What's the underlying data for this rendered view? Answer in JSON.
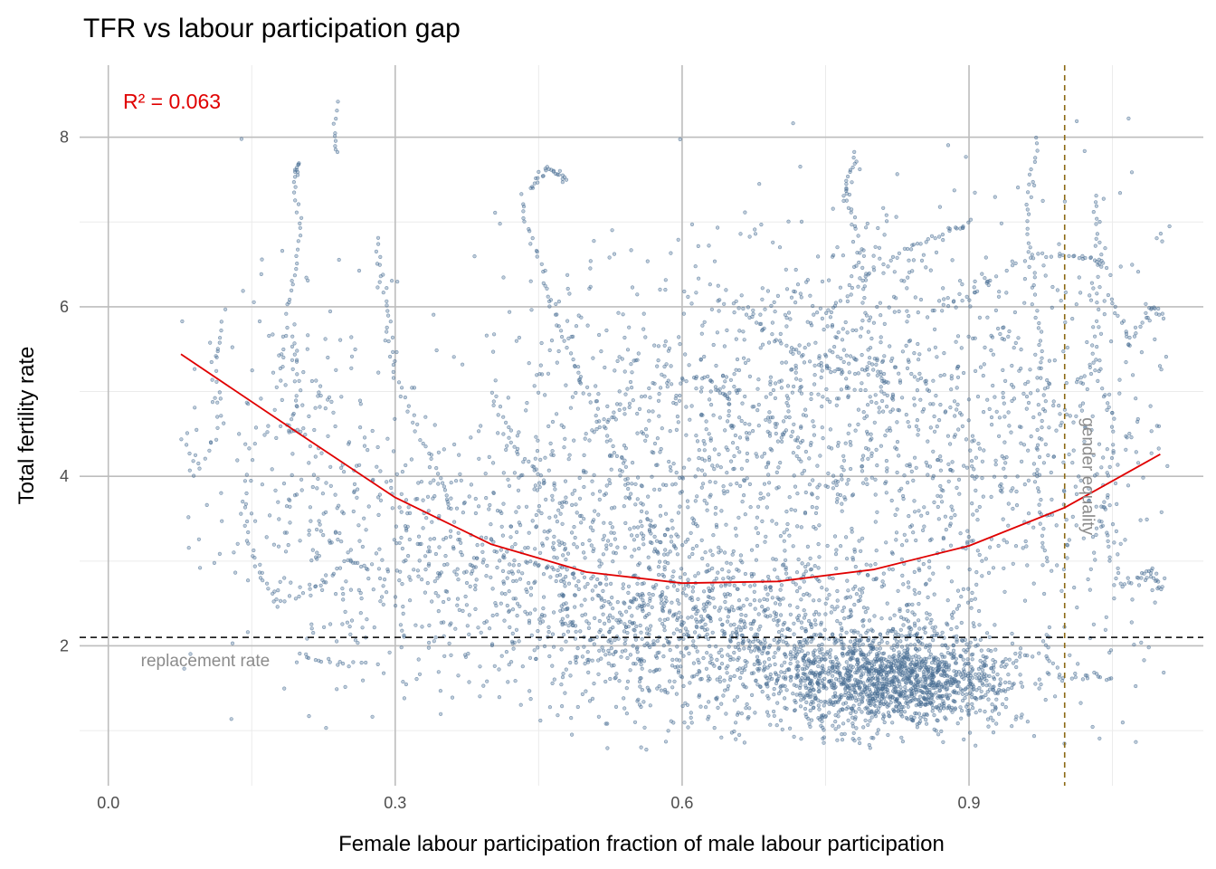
{
  "chart_data": {
    "type": "scatter",
    "title": "TFR vs labour participation gap",
    "xlabel": "Female labour participation fraction of male labour participation",
    "ylabel": "Total fertility rate",
    "xlim": [
      -0.03,
      1.145
    ],
    "ylim": [
      0.35,
      8.85
    ],
    "x_ticks": [
      {
        "value": 0.0,
        "label": "0.0"
      },
      {
        "value": 0.3,
        "label": "0.3"
      },
      {
        "value": 0.6,
        "label": "0.6"
      },
      {
        "value": 0.9,
        "label": "0.9"
      }
    ],
    "y_ticks": [
      {
        "value": 2,
        "label": "2"
      },
      {
        "value": 4,
        "label": "4"
      },
      {
        "value": 6,
        "label": "6"
      },
      {
        "value": 8,
        "label": "8"
      }
    ],
    "x_minor": [
      0.15,
      0.45,
      0.75,
      1.05
    ],
    "y_minor": [
      1,
      3,
      5,
      7
    ],
    "grid": true,
    "point_color": "#4a6f94",
    "fit": {
      "type": "quadratic",
      "color": "#e00000",
      "r2_label": "R² = 0.063",
      "points": [
        [
          0.076,
          5.44
        ],
        [
          0.2,
          4.5
        ],
        [
          0.3,
          3.75
        ],
        [
          0.4,
          3.2
        ],
        [
          0.5,
          2.87
        ],
        [
          0.6,
          2.74
        ],
        [
          0.7,
          2.76
        ],
        [
          0.8,
          2.9
        ],
        [
          0.9,
          3.18
        ],
        [
          1.0,
          3.63
        ],
        [
          1.1,
          4.26
        ]
      ]
    },
    "replacement_rate": {
      "y": 2.1,
      "label": "replacement rate",
      "color": "#000000"
    },
    "gender_equality": {
      "x": 1.0,
      "label": "gender equality",
      "color": "#8b6914"
    },
    "clusters": [
      {
        "cx": 0.82,
        "cy": 1.6,
        "sx": 0.065,
        "sy": 0.28,
        "n": 1500
      },
      {
        "cx": 0.65,
        "cy": 2.1,
        "sx": 0.11,
        "sy": 0.55,
        "n": 900
      },
      {
        "cx": 0.5,
        "cy": 2.7,
        "sx": 0.12,
        "sy": 0.6,
        "n": 500
      },
      {
        "cx": 0.3,
        "cy": 3.2,
        "sx": 0.1,
        "sy": 0.8,
        "n": 320
      },
      {
        "cx": 0.85,
        "cy": 4.4,
        "sx": 0.1,
        "sy": 1.2,
        "n": 850
      },
      {
        "cx": 0.7,
        "cy": 5.3,
        "sx": 0.09,
        "sy": 0.9,
        "n": 320
      },
      {
        "cx": 0.6,
        "cy": 3.8,
        "sx": 0.07,
        "sy": 0.8,
        "n": 240
      },
      {
        "cx": 0.5,
        "cy": 5.0,
        "sx": 0.07,
        "sy": 0.9,
        "n": 180
      },
      {
        "cx": 0.2,
        "cy": 4.8,
        "sx": 0.06,
        "sy": 1.0,
        "n": 180
      },
      {
        "cx": 1.04,
        "cy": 4.5,
        "sx": 0.04,
        "sy": 1.6,
        "n": 160
      }
    ],
    "trajectories": [
      {
        "points": [
          [
            0.2,
            7.7
          ],
          [
            0.195,
            7.5
          ],
          [
            0.2,
            6.8
          ],
          [
            0.19,
            6.0
          ],
          [
            0.2,
            5.0
          ],
          [
            0.19,
            4.5
          ]
        ],
        "n": 50
      },
      {
        "points": [
          [
            0.44,
            7.4
          ],
          [
            0.46,
            7.65
          ],
          [
            0.48,
            7.5
          ]
        ],
        "n": 26
      },
      {
        "points": [
          [
            0.43,
            7.3
          ],
          [
            0.45,
            6.6
          ],
          [
            0.47,
            5.8
          ],
          [
            0.5,
            5.0
          ],
          [
            0.53,
            4.3
          ],
          [
            0.56,
            3.6
          ],
          [
            0.58,
            3.0
          ]
        ],
        "n": 70
      },
      {
        "points": [
          [
            0.76,
            6.0
          ],
          [
            0.8,
            6.4
          ],
          [
            0.84,
            6.7
          ],
          [
            0.88,
            6.9
          ],
          [
            0.9,
            7.0
          ]
        ],
        "n": 40
      },
      {
        "points": [
          [
            0.85,
            5.9
          ],
          [
            0.9,
            6.1
          ],
          [
            0.96,
            6.6
          ],
          [
            1.02,
            6.6
          ],
          [
            1.04,
            6.5
          ]
        ],
        "n": 45
      },
      {
        "points": [
          [
            0.97,
            8.0
          ],
          [
            0.96,
            7.0
          ],
          [
            0.97,
            6.0
          ],
          [
            0.98,
            5.0
          ],
          [
            0.97,
            4.0
          ],
          [
            0.98,
            3.0
          ]
        ],
        "n": 70
      },
      {
        "points": [
          [
            0.78,
            7.8
          ],
          [
            0.77,
            7.4
          ],
          [
            0.78,
            6.9
          ],
          [
            0.79,
            6.2
          ],
          [
            0.8,
            5.3
          ]
        ],
        "n": 45
      },
      {
        "points": [
          [
            1.05,
            6.1
          ],
          [
            1.07,
            5.6
          ],
          [
            1.09,
            6.0
          ],
          [
            1.1,
            5.9
          ]
        ],
        "n": 30
      },
      {
        "points": [
          [
            1.03,
            7.3
          ],
          [
            1.04,
            6.6
          ],
          [
            1.03,
            5.5
          ],
          [
            1.05,
            4.5
          ],
          [
            1.04,
            3.4
          ],
          [
            1.06,
            2.7
          ],
          [
            1.09,
            2.9
          ],
          [
            1.1,
            2.65
          ]
        ],
        "n": 80
      },
      {
        "points": [
          [
            0.08,
            4.5
          ],
          [
            0.09,
            4.0
          ],
          [
            0.12,
            4.6
          ],
          [
            0.11,
            5.3
          ],
          [
            0.12,
            5.8
          ]
        ],
        "n": 30
      },
      {
        "points": [
          [
            0.14,
            3.7
          ],
          [
            0.15,
            3.0
          ],
          [
            0.18,
            2.5
          ],
          [
            0.22,
            2.7
          ],
          [
            0.25,
            3.0
          ],
          [
            0.28,
            2.9
          ]
        ],
        "n": 50
      },
      {
        "points": [
          [
            0.2,
            1.9
          ],
          [
            0.23,
            1.8
          ],
          [
            0.27,
            1.8
          ]
        ],
        "n": 16
      },
      {
        "points": [
          [
            0.5,
            4.5
          ],
          [
            0.55,
            4.9
          ],
          [
            0.62,
            5.2
          ],
          [
            0.65,
            4.9
          ]
        ],
        "n": 35
      },
      {
        "points": [
          [
            0.4,
            5.0
          ],
          [
            0.42,
            4.4
          ],
          [
            0.45,
            4.0
          ],
          [
            0.5,
            3.5
          ]
        ],
        "n": 35
      },
      {
        "points": [
          [
            0.66,
            6.0
          ],
          [
            0.7,
            5.6
          ],
          [
            0.74,
            5.3
          ],
          [
            0.78,
            5.2
          ],
          [
            0.82,
            5.4
          ]
        ],
        "n": 40
      },
      {
        "points": [
          [
            0.24,
            8.4
          ],
          [
            0.235,
            8.0
          ],
          [
            0.24,
            7.8
          ]
        ],
        "n": 10
      },
      {
        "points": [
          [
            0.98,
            1.9
          ],
          [
            1.0,
            1.6
          ],
          [
            1.03,
            1.65
          ],
          [
            1.05,
            1.6
          ]
        ],
        "n": 18
      },
      {
        "points": [
          [
            0.28,
            6.8
          ],
          [
            0.29,
            6.0
          ],
          [
            0.3,
            5.2
          ],
          [
            0.33,
            4.4
          ],
          [
            0.36,
            3.6
          ]
        ],
        "n": 50
      }
    ]
  }
}
